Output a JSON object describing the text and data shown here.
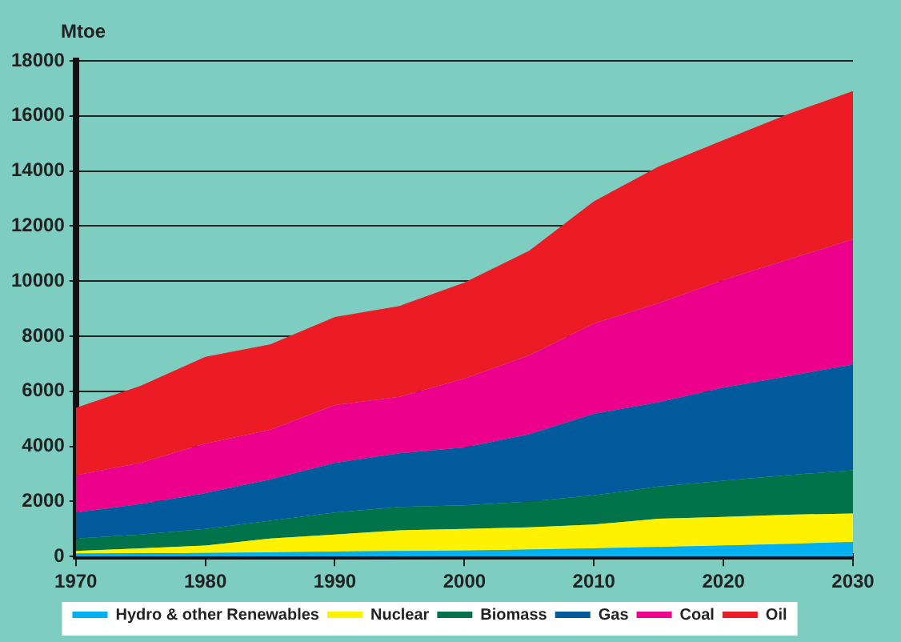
{
  "chart_data": {
    "type": "area",
    "stacked": true,
    "ylabel": "Mtoe",
    "x": [
      1970,
      1975,
      1980,
      1985,
      1990,
      1995,
      2000,
      2005,
      2010,
      2015,
      2020,
      2025,
      2030
    ],
    "xlim": [
      1970,
      2030
    ],
    "xticks": [
      1970,
      1980,
      1990,
      2000,
      2010,
      2020,
      2030
    ],
    "ylim": [
      0,
      18000
    ],
    "yticks": [
      0,
      2000,
      4000,
      6000,
      8000,
      10000,
      12000,
      14000,
      16000,
      18000
    ],
    "grid": "y",
    "legend": "bottom",
    "series": [
      {
        "name": "Hydro & other Renewables",
        "color": "#00b0f0",
        "values": [
          100,
          110,
          130,
          150,
          180,
          200,
          220,
          250,
          300,
          350,
          400,
          460,
          530
        ]
      },
      {
        "name": "Nuclear",
        "color": "#fff200",
        "values": [
          100,
          190,
          270,
          500,
          620,
          750,
          780,
          810,
          860,
          1020,
          1040,
          1060,
          1030
        ]
      },
      {
        "name": "Biomass",
        "color": "#00734a",
        "values": [
          450,
          500,
          600,
          650,
          800,
          850,
          860,
          940,
          1060,
          1170,
          1310,
          1440,
          1570
        ]
      },
      {
        "name": "Gas",
        "color": "#005a9c",
        "values": [
          950,
          1100,
          1300,
          1500,
          1800,
          1950,
          2100,
          2440,
          2960,
          3060,
          3380,
          3590,
          3840
        ]
      },
      {
        "name": "Coal",
        "color": "#ec008c",
        "values": [
          1350,
          1500,
          1800,
          1800,
          2100,
          2050,
          2500,
          2860,
          3280,
          3600,
          3910,
          4230,
          4550
        ]
      },
      {
        "name": "Oil",
        "color": "#ed1c24",
        "values": [
          2450,
          2800,
          3150,
          3100,
          3200,
          3300,
          3490,
          3800,
          4440,
          4960,
          5080,
          5290,
          5380
        ]
      }
    ]
  }
}
